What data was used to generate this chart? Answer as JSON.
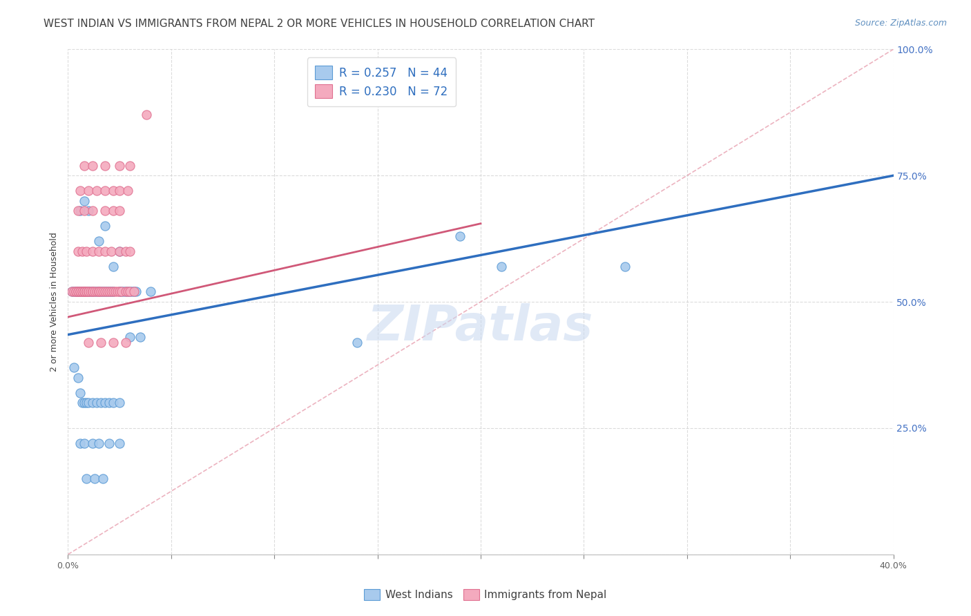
{
  "title": "WEST INDIAN VS IMMIGRANTS FROM NEPAL 2 OR MORE VEHICLES IN HOUSEHOLD CORRELATION CHART",
  "source": "Source: ZipAtlas.com",
  "ylabel": "2 or more Vehicles in Household",
  "x_min": 0.0,
  "x_max": 0.4,
  "y_min": 0.0,
  "y_max": 1.0,
  "x_ticks": [
    0.0,
    0.05,
    0.1,
    0.15,
    0.2,
    0.25,
    0.3,
    0.35,
    0.4
  ],
  "y_ticks": [
    0.0,
    0.25,
    0.5,
    0.75,
    1.0
  ],
  "y_tick_labels": [
    "",
    "25.0%",
    "50.0%",
    "75.0%",
    "100.0%"
  ],
  "blue_R": 0.257,
  "blue_N": 44,
  "pink_R": 0.23,
  "pink_N": 72,
  "blue_color": "#A8CAED",
  "pink_color": "#F4AABE",
  "blue_edge_color": "#5B9BD5",
  "pink_edge_color": "#E07090",
  "blue_line_color": "#2E6EBF",
  "pink_line_color": "#D05878",
  "dashed_line_color": "#E8A0B0",
  "watermark_color": "#C8D8F0",
  "legend_label_blue": "West Indians",
  "legend_label_pink": "Immigrants from Nepal",
  "blue_scatter_x": [
    0.002,
    0.003,
    0.004,
    0.005,
    0.005,
    0.006,
    0.007,
    0.008,
    0.009,
    0.01,
    0.01,
    0.011,
    0.012,
    0.013,
    0.014,
    0.015,
    0.016,
    0.017,
    0.018,
    0.019,
    0.02,
    0.021,
    0.022,
    0.025,
    0.026,
    0.027,
    0.028,
    0.029,
    0.03,
    0.031,
    0.032,
    0.033,
    0.04,
    0.006,
    0.008,
    0.01,
    0.015,
    0.018,
    0.022,
    0.025,
    0.19,
    0.21,
    0.14,
    0.27
  ],
  "blue_scatter_y": [
    0.52,
    0.52,
    0.52,
    0.52,
    0.52,
    0.52,
    0.52,
    0.52,
    0.52,
    0.52,
    0.52,
    0.52,
    0.52,
    0.52,
    0.52,
    0.52,
    0.52,
    0.52,
    0.52,
    0.52,
    0.52,
    0.52,
    0.52,
    0.52,
    0.52,
    0.52,
    0.52,
    0.52,
    0.52,
    0.52,
    0.52,
    0.52,
    0.52,
    0.68,
    0.7,
    0.68,
    0.62,
    0.65,
    0.57,
    0.6,
    0.63,
    0.57,
    0.42,
    0.57
  ],
  "blue_scatter_x2": [
    0.003,
    0.005,
    0.006,
    0.007,
    0.008,
    0.009,
    0.01,
    0.012,
    0.014,
    0.016,
    0.018,
    0.02,
    0.022,
    0.025,
    0.006,
    0.008,
    0.012,
    0.015,
    0.02,
    0.025,
    0.03,
    0.035,
    0.009,
    0.013,
    0.017
  ],
  "blue_scatter_y2": [
    0.37,
    0.35,
    0.32,
    0.3,
    0.3,
    0.3,
    0.3,
    0.3,
    0.3,
    0.3,
    0.3,
    0.3,
    0.3,
    0.3,
    0.22,
    0.22,
    0.22,
    0.22,
    0.22,
    0.22,
    0.43,
    0.43,
    0.15,
    0.15,
    0.15
  ],
  "pink_scatter_x": [
    0.002,
    0.003,
    0.004,
    0.004,
    0.005,
    0.005,
    0.006,
    0.006,
    0.007,
    0.007,
    0.008,
    0.008,
    0.008,
    0.009,
    0.009,
    0.01,
    0.01,
    0.011,
    0.012,
    0.012,
    0.013,
    0.014,
    0.015,
    0.015,
    0.016,
    0.017,
    0.018,
    0.019,
    0.02,
    0.021,
    0.022,
    0.023,
    0.024,
    0.025,
    0.026,
    0.028,
    0.029,
    0.03,
    0.032,
    0.005,
    0.007,
    0.009,
    0.012,
    0.015,
    0.018,
    0.021,
    0.025,
    0.028,
    0.03,
    0.005,
    0.008,
    0.012,
    0.018,
    0.022,
    0.025,
    0.006,
    0.01,
    0.014,
    0.018,
    0.022,
    0.025,
    0.029,
    0.008,
    0.012,
    0.018,
    0.025,
    0.03,
    0.038,
    0.01,
    0.016,
    0.022,
    0.028
  ],
  "pink_scatter_y": [
    0.52,
    0.52,
    0.52,
    0.52,
    0.52,
    0.52,
    0.52,
    0.52,
    0.52,
    0.52,
    0.52,
    0.52,
    0.52,
    0.52,
    0.52,
    0.52,
    0.52,
    0.52,
    0.52,
    0.52,
    0.52,
    0.52,
    0.52,
    0.52,
    0.52,
    0.52,
    0.52,
    0.52,
    0.52,
    0.52,
    0.52,
    0.52,
    0.52,
    0.52,
    0.52,
    0.52,
    0.52,
    0.52,
    0.52,
    0.6,
    0.6,
    0.6,
    0.6,
    0.6,
    0.6,
    0.6,
    0.6,
    0.6,
    0.6,
    0.68,
    0.68,
    0.68,
    0.68,
    0.68,
    0.68,
    0.72,
    0.72,
    0.72,
    0.72,
    0.72,
    0.72,
    0.72,
    0.77,
    0.77,
    0.77,
    0.77,
    0.77,
    0.87,
    0.42,
    0.42,
    0.42,
    0.42
  ],
  "blue_line_x": [
    0.0,
    0.4
  ],
  "blue_line_y": [
    0.435,
    0.75
  ],
  "pink_line_x": [
    0.0,
    0.2
  ],
  "pink_line_y": [
    0.47,
    0.655
  ],
  "dashed_line_x": [
    0.0,
    0.4
  ],
  "dashed_line_y": [
    0.0,
    1.0
  ],
  "title_fontsize": 11,
  "axis_label_fontsize": 9,
  "tick_fontsize": 9,
  "legend_fontsize": 12,
  "watermark_fontsize": 52,
  "source_fontsize": 9,
  "background_color": "#FFFFFF",
  "grid_color": "#CCCCCC",
  "title_color": "#404040",
  "tick_color_right": "#4472C4",
  "tick_color_bottom": "#606060"
}
